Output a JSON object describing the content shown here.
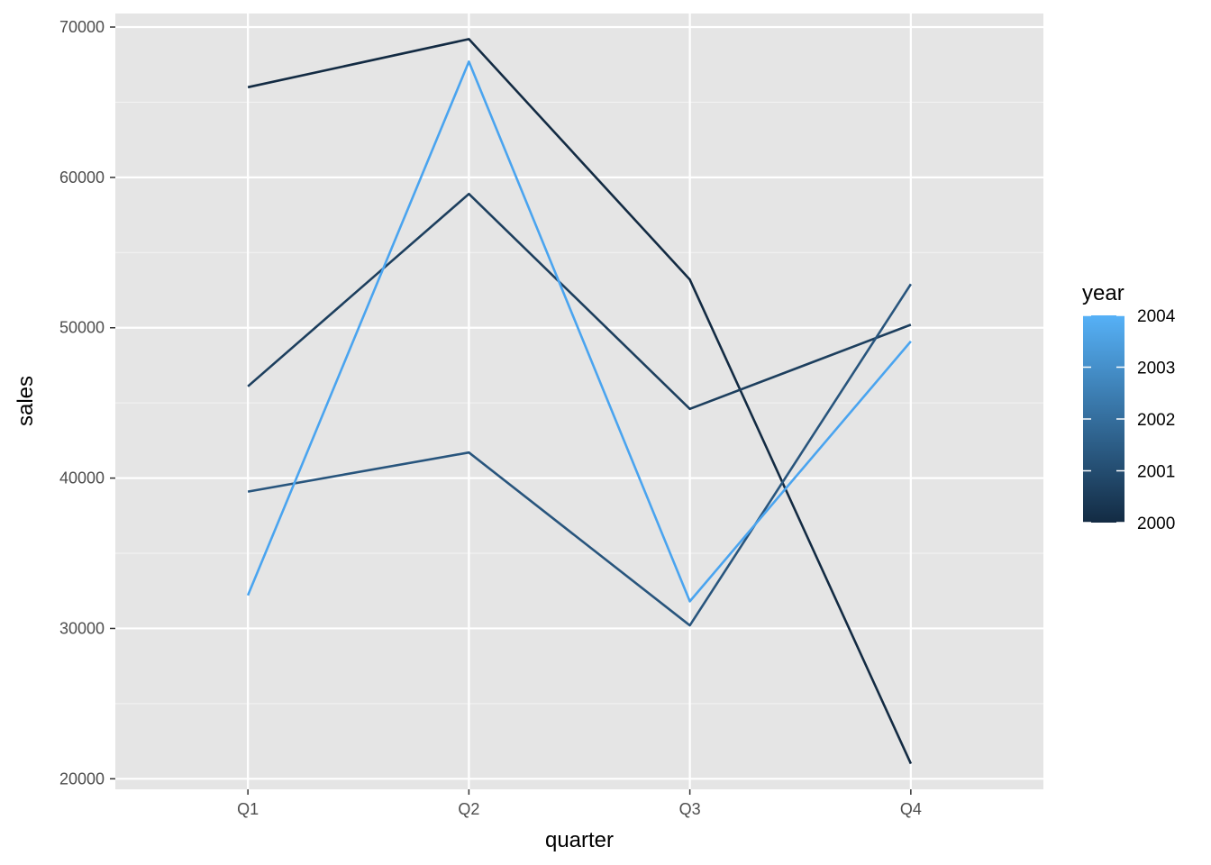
{
  "chart_data": {
    "type": "line",
    "xlabel": "quarter",
    "ylabel": "sales",
    "categories": [
      "Q1",
      "Q2",
      "Q3",
      "Q4"
    ],
    "ylim": [
      19300,
      70900
    ],
    "yticks": [
      20000,
      30000,
      40000,
      50000,
      60000,
      70000
    ],
    "ytick_labels": [
      "20000",
      "30000",
      "40000",
      "50000",
      "60000",
      "70000"
    ],
    "series": [
      {
        "year": 2000,
        "color": "#132b43",
        "values": [
          66000,
          69200,
          53200,
          21000
        ]
      },
      {
        "year": 2001,
        "color": "#1d3f5e",
        "values": [
          46100,
          58900,
          44600,
          50200
        ]
      },
      {
        "year": 2002,
        "color": "#28557d",
        "values": [
          39100,
          41700,
          30200,
          52900
        ]
      },
      {
        "year": 2004,
        "color": "#4aa4ef",
        "values": [
          32200,
          67700,
          31800,
          49100
        ]
      }
    ],
    "legend": {
      "title": "year",
      "position": "right",
      "breaks": [
        "2000",
        "2001",
        "2002",
        "2003",
        "2004"
      ],
      "range": [
        2000,
        2004
      ],
      "low_color": "#132b43",
      "high_color": "#56b1f7"
    },
    "background": "#e5e5e5",
    "grid": true
  }
}
